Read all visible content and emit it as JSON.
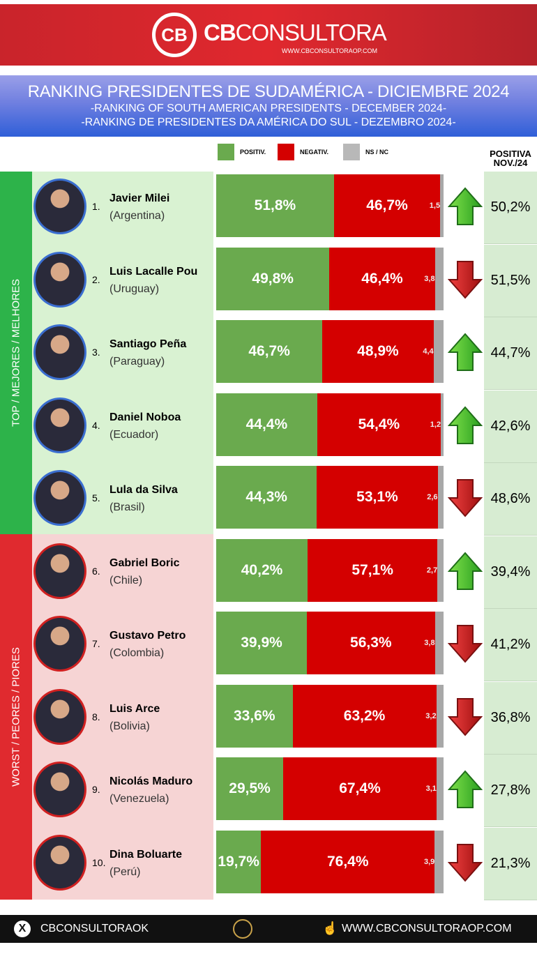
{
  "header": {
    "brand_bold": "CB",
    "brand_rest": "CONSULTORA",
    "url": "WWW.CBCONSULTORAOP.COM",
    "logo_text": "CB"
  },
  "title": {
    "main": "RANKING PRESIDENTES DE SUDAMÉRICA - DICIEMBRE  2024",
    "en": "-RANKING OF SOUTH AMERICAN PRESIDENTS - DECEMBER 2024-",
    "pt": "-RANKING DE PRESIDENTES DA AMÉRICA DO SUL - DEZEMBRO 2024-"
  },
  "legend": {
    "positive": "POSITIV.",
    "negative": "NEGATIV.",
    "nsnc": "NS / NC"
  },
  "prev_header": {
    "line1": "POSITIVA",
    "line2": "NOV./24"
  },
  "bands": {
    "top": "TOP / MEJORES / MELHORES",
    "worst": "WORST / PEORES / PIORES"
  },
  "colors": {
    "positive": "#6aaa4e",
    "negative": "#d40000",
    "nsnc": "#a8a8a8",
    "top_band": "#2db34a",
    "worst_band": "#e02a2f",
    "top_panel": "#d9f2d2",
    "worst_panel": "#f6d4d4"
  },
  "chart_data": {
    "type": "bar",
    "stacked": true,
    "orientation": "horizontal",
    "series_names": [
      "POSITIV.",
      "NEGATIV.",
      "NS / NC"
    ],
    "rows": [
      {
        "rank": "1.",
        "name": "Javier Milei",
        "country": "(Argentina)",
        "positive": 51.8,
        "negative": 46.7,
        "nsnc": 1.5,
        "positive_label": "51,8%",
        "negative_label": "46,7%",
        "nsnc_label": "1,5",
        "trend": "up",
        "prev": "50,2%"
      },
      {
        "rank": "2.",
        "name": "Luis Lacalle Pou",
        "country": "(Uruguay)",
        "positive": 49.8,
        "negative": 46.4,
        "nsnc": 3.8,
        "positive_label": "49,8%",
        "negative_label": "46,4%",
        "nsnc_label": "3,8",
        "trend": "down",
        "prev": "51,5%"
      },
      {
        "rank": "3.",
        "name": "Santiago Peña",
        "country": "(Paraguay)",
        "positive": 46.7,
        "negative": 48.9,
        "nsnc": 4.4,
        "positive_label": "46,7%",
        "negative_label": "48,9%",
        "nsnc_label": "4,4",
        "trend": "up",
        "prev": "44,7%"
      },
      {
        "rank": "4.",
        "name": "Daniel Noboa",
        "country": "(Ecuador)",
        "positive": 44.4,
        "negative": 54.4,
        "nsnc": 1.2,
        "positive_label": "44,4%",
        "negative_label": "54,4%",
        "nsnc_label": "1,2",
        "trend": "up",
        "prev": "42,6%"
      },
      {
        "rank": "5.",
        "name": "Lula da Silva",
        "country": "(Brasil)",
        "positive": 44.3,
        "negative": 53.1,
        "nsnc": 2.6,
        "positive_label": "44,3%",
        "negative_label": "53,1%",
        "nsnc_label": "2,6",
        "trend": "down",
        "prev": "48,6%"
      },
      {
        "rank": "6.",
        "name": "Gabriel Boric",
        "country": "(Chile)",
        "positive": 40.2,
        "negative": 57.1,
        "nsnc": 2.7,
        "positive_label": "40,2%",
        "negative_label": "57,1%",
        "nsnc_label": "2,7",
        "trend": "up",
        "prev": "39,4%"
      },
      {
        "rank": "7.",
        "name": "Gustavo Petro",
        "country": "(Colombia)",
        "positive": 39.9,
        "negative": 56.3,
        "nsnc": 3.8,
        "positive_label": "39,9%",
        "negative_label": "56,3%",
        "nsnc_label": "3,8",
        "trend": "down",
        "prev": "41,2%"
      },
      {
        "rank": "8.",
        "name": "Luis Arce",
        "country": "(Bolivia)",
        "positive": 33.6,
        "negative": 63.2,
        "nsnc": 3.2,
        "positive_label": "33,6%",
        "negative_label": "63,2%",
        "nsnc_label": "3,2",
        "trend": "down",
        "prev": "36,8%"
      },
      {
        "rank": "9.",
        "name": "Nicolás Maduro",
        "country": "(Venezuela)",
        "positive": 29.5,
        "negative": 67.4,
        "nsnc": 3.1,
        "positive_label": "29,5%",
        "negative_label": "67,4%",
        "nsnc_label": "3,1",
        "trend": "up",
        "prev": "27,8%"
      },
      {
        "rank": "10.",
        "name": "Dina Boluarte",
        "country": "(Perú)",
        "positive": 19.7,
        "negative": 76.4,
        "nsnc": 3.9,
        "positive_label": "19,7%",
        "negative_label": "76,4%",
        "nsnc_label": "3,9",
        "trend": "down",
        "prev": "21,3%"
      }
    ]
  },
  "footer": {
    "social": "CBCONSULTORAOK",
    "website": "WWW.CBCONSULTORAOP.COM"
  }
}
